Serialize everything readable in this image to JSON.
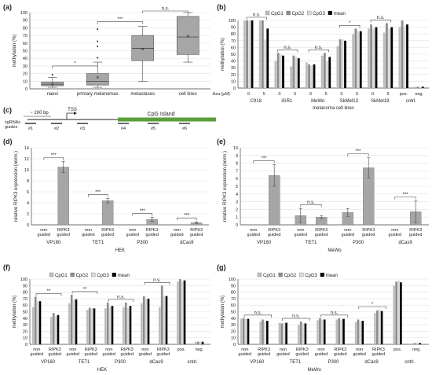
{
  "figure": {
    "panel_labels": [
      "(a)",
      "(b)",
      "(c)",
      "(d)",
      "(e)",
      "(f)",
      "(g)"
    ]
  },
  "colors": {
    "box": "#a6a6a6",
    "bar": "#a6a6a6",
    "cpg1": "#bdbdbd",
    "cpg2": "#8c8c8c",
    "cpg3": "#d9d9d9",
    "mean": "#000000",
    "green": "#5a9e3a"
  },
  "chart_data": [
    {
      "panel": "(a)",
      "type": "box",
      "ylabel": "methylation (%)",
      "ylim": [
        0,
        100
      ],
      "yticks": [
        0,
        10,
        20,
        30,
        40,
        50,
        60,
        70,
        80,
        90,
        100
      ],
      "categories": [
        "naevi",
        "primary melanomas",
        "metastases",
        "cell lines"
      ],
      "boxes": [
        {
          "min": 2,
          "q1": 4,
          "median": 6,
          "q3": 9,
          "max": 15,
          "mean": 6,
          "outliers": [
            18
          ]
        },
        {
          "min": 2,
          "q1": 5,
          "median": 10,
          "q3": 20,
          "max": 35,
          "mean": 15,
          "outliers": [
            40,
            55,
            62,
            78
          ]
        },
        {
          "min": 10,
          "q1": 37,
          "median": 53,
          "q3": 70,
          "max": 82,
          "mean": 52,
          "outliers": []
        },
        {
          "min": 35,
          "q1": 45,
          "median": 68,
          "q3": 95,
          "max": 100,
          "mean": 69,
          "outliers": []
        }
      ],
      "annotations": [
        {
          "from": 0,
          "to": 1,
          "label": "*",
          "y": 30
        },
        {
          "from": 1,
          "to": 2,
          "label": "***",
          "y": 88
        },
        {
          "from": 2,
          "to": 3,
          "label": "n.s.",
          "y": 104
        }
      ]
    },
    {
      "panel": "(b)",
      "type": "bar",
      "ylabel": "methylation (%)",
      "xlabel": "melanoma cell lines",
      "ylim": [
        0,
        100
      ],
      "yticks": [
        0,
        10,
        20,
        30,
        40,
        50,
        60,
        70,
        80,
        90,
        100
      ],
      "legend": [
        "CpG1",
        "CpG2",
        "CpG3",
        "mean"
      ],
      "aza_label": "Aza (μM)",
      "groups": [
        {
          "name": "C918",
          "doses": [
            "0",
            "5"
          ],
          "values": [
            [
              100,
              100,
              100,
              100
            ],
            [
              100,
              100,
              72,
              88
            ]
          ],
          "sig": "n.s."
        },
        {
          "name": "IGR1",
          "doses": [
            "0",
            "5"
          ],
          "values": [
            [
              40,
              52,
              50,
              48
            ],
            [
              32,
              48,
              46,
              44
            ]
          ],
          "sig": "n.s."
        },
        {
          "name": "MeWo",
          "doses": [
            "0",
            "5"
          ],
          "values": [
            [
              38,
              35,
              33,
              35
            ],
            [
              48,
              52,
              40,
              46
            ]
          ],
          "sig": "n.s."
        },
        {
          "name": "SkMel13",
          "doses": [
            "0",
            "5"
          ],
          "values": [
            [
              62,
              72,
              72,
              70
            ],
            [
              80,
              88,
              84,
              84
            ]
          ],
          "sig": "*"
        },
        {
          "name": "SkMel19",
          "doses": [
            "0",
            "5"
          ],
          "values": [
            [
              88,
              94,
              88,
              90
            ],
            [
              82,
              96,
              88,
              90
            ]
          ],
          "sig": "n.s."
        }
      ],
      "controls": [
        {
          "name": "pos.",
          "values": [
            90,
            100,
            92,
            94
          ]
        },
        {
          "name": "neg.",
          "values": [
            2,
            2,
            2,
            2
          ]
        }
      ],
      "control_group": "cntrl."
    },
    {
      "panel": "(c)",
      "type": "diagram",
      "scale_label": "~ 200 bp",
      "tss_label": "TSS",
      "island_label": "CpG Island",
      "guides_label": "sgRNAs / guides",
      "guides": [
        "#1",
        "#2",
        "#3",
        "#4",
        "#5",
        "#6"
      ]
    },
    {
      "panel": "(d)",
      "type": "bar",
      "ylabel": "relative RIPK3 expression (norm.)",
      "ylim": [
        0,
        14
      ],
      "yticks": [
        0,
        2,
        4,
        6,
        8,
        10,
        12,
        14
      ],
      "subcategories": [
        "non guided",
        "RIPK3 guided"
      ],
      "groups": [
        "VP160",
        "TET1",
        "P300",
        "dCas9"
      ],
      "values": [
        [
          0,
          10.5
        ],
        [
          0,
          4.4
        ],
        [
          0,
          1.0
        ],
        [
          0,
          0.4
        ]
      ],
      "errors": [
        [
          0,
          1.0
        ],
        [
          0,
          0.4
        ],
        [
          0,
          0.35
        ],
        [
          0,
          0.15
        ]
      ],
      "sig": [
        "***",
        "***",
        "***",
        "***"
      ],
      "group_label": "HEK"
    },
    {
      "panel": "(e)",
      "type": "bar",
      "ylabel": "relative RIPK3 expression (norm.)",
      "ylim": [
        0,
        10
      ],
      "yticks": [
        0,
        1,
        2,
        3,
        4,
        5,
        6,
        7,
        8,
        9,
        10
      ],
      "subcategories": [
        "non guided",
        "RIPK3 guided"
      ],
      "groups": [
        "VP160",
        "TET1",
        "P300",
        "dCas9"
      ],
      "values": [
        [
          0,
          6.4
        ],
        [
          1.2,
          1.0
        ],
        [
          1.6,
          7.4
        ],
        [
          0,
          1.7
        ]
      ],
      "errors": [
        [
          0,
          1.4
        ],
        [
          0.9,
          0.2
        ],
        [
          0.5,
          1.3
        ],
        [
          0,
          1.4
        ]
      ],
      "sig": [
        "***",
        "n.s.",
        "***",
        "***"
      ],
      "group_label": "MeWo"
    },
    {
      "panel": "(f)",
      "type": "bar",
      "ylabel": "methylation (%)",
      "ylim": [
        0,
        100
      ],
      "yticks": [
        0,
        10,
        20,
        30,
        40,
        50,
        60,
        70,
        80,
        90,
        100
      ],
      "legend": [
        "CpG1",
        "CpG2",
        "CpG3",
        "mean"
      ],
      "subcategories": [
        "non guided",
        "RIPK3 guided"
      ],
      "groups": [
        "VP160",
        "TET1",
        "P300",
        "dCas9"
      ],
      "values": [
        [
          [
            57,
            73,
            66,
            66
          ],
          [
            42,
            48,
            43,
            45
          ]
        ],
        [
          [
            63,
            76,
            68,
            69
          ],
          [
            53,
            56,
            55,
            55
          ]
        ],
        [
          [
            55,
            64,
            57,
            59
          ],
          [
            57,
            64,
            56,
            59
          ]
        ],
        [
          [
            63,
            74,
            70,
            70
          ],
          [
            57,
            90,
            74,
            74
          ]
        ]
      ],
      "sig": [
        "**",
        "**",
        "n.s.",
        "n.s."
      ],
      "controls": [
        {
          "name": "pos.",
          "values": [
            96,
            100,
            97,
            98
          ]
        },
        {
          "name": "neg.",
          "values": [
            4,
            4,
            4,
            4
          ]
        }
      ],
      "control_group": "cntrl.",
      "group_label": "HEK"
    },
    {
      "panel": "(g)",
      "type": "bar",
      "ylabel": "methylation (%)",
      "ylim": [
        0,
        100
      ],
      "yticks": [
        0,
        10,
        20,
        30,
        40,
        50,
        60,
        70,
        80,
        90,
        100
      ],
      "legend": [
        "CpG1",
        "CpG2",
        "CpG3",
        "mean"
      ],
      "subcategories": [
        "non guided",
        "RIPK3 guided"
      ],
      "groups": [
        "VP160",
        "TET1",
        "P300",
        "dCas9"
      ],
      "values": [
        [
          [
            39,
            40,
            39,
            39
          ],
          [
            35,
            38,
            35,
            36
          ]
        ],
        [
          [
            33,
            32,
            33,
            33
          ],
          [
            30,
            35,
            32,
            32
          ]
        ],
        [
          [
            37,
            40,
            38,
            38
          ],
          [
            38,
            40,
            38,
            39
          ]
        ],
        [
          [
            34,
            38,
            36,
            36
          ],
          [
            48,
            52,
            53,
            51
          ]
        ]
      ],
      "sig": [
        "n.s.",
        "n.s.",
        "n.s.",
        "*"
      ],
      "controls": [
        {
          "name": "pos.",
          "values": [
            90,
            96,
            98,
            95
          ]
        },
        {
          "name": "neg.",
          "values": [
            2,
            2,
            2,
            2
          ]
        }
      ],
      "control_group": "cntrl.",
      "group_label": "MeWo"
    }
  ]
}
